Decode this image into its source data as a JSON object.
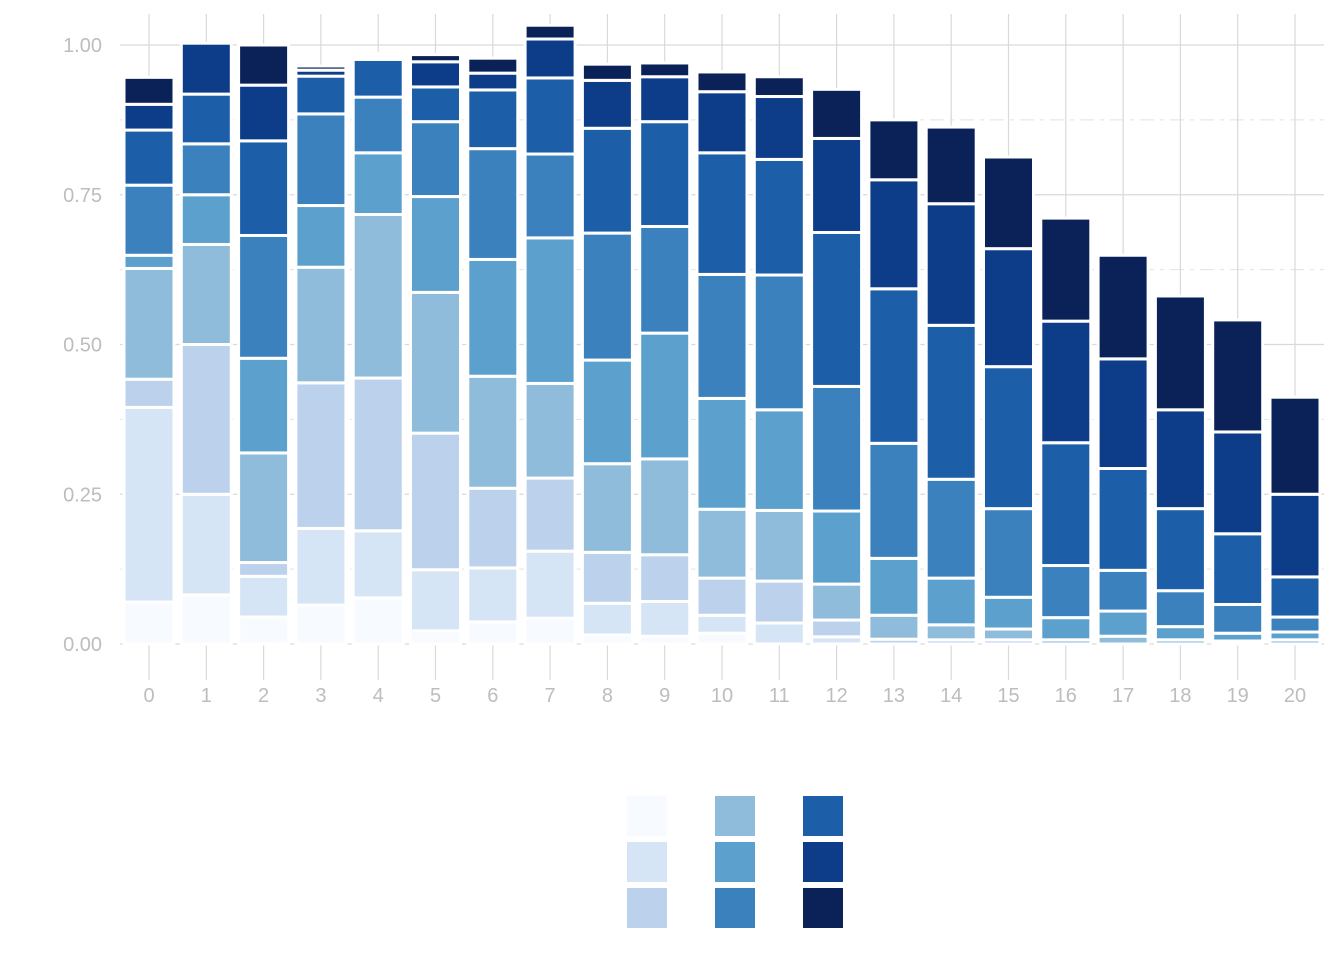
{
  "chart_data": {
    "type": "bar",
    "stacked": true,
    "x": [
      0,
      1,
      2,
      3,
      4,
      5,
      6,
      7,
      8,
      9,
      10,
      11,
      12,
      13,
      14,
      15,
      16,
      17,
      18,
      19,
      20
    ],
    "ylim": [
      0,
      1
    ],
    "yticks": [
      "0.00",
      "0.25",
      "0.50",
      "0.75",
      "1.00"
    ],
    "ytick_values": [
      0,
      0.25,
      0.5,
      0.75,
      1
    ],
    "grid": true,
    "legend_position": "bottom-center",
    "palette": [
      "#f7fbff",
      "#d5e5f5",
      "#bcd1ec",
      "#8fbcdb",
      "#5ca0cd",
      "#3a81be",
      "#1d5ea9",
      "#0d3c89",
      "#0b2258"
    ],
    "series": [
      {
        "values": [
          0.07,
          0.082,
          0.045,
          0.065,
          0.077,
          0.022,
          0.037,
          0.043,
          0.015,
          0.013,
          0.018,
          0.0,
          0.0,
          0.0,
          0.0,
          0.0,
          0.0,
          0.0,
          0.0,
          0.0,
          0.0
        ]
      },
      {
        "values": [
          0.325,
          0.168,
          0.068,
          0.128,
          0.112,
          0.102,
          0.09,
          0.112,
          0.053,
          0.058,
          0.03,
          0.035,
          0.012,
          0.0,
          0.0,
          0.0,
          0.0,
          0.0,
          0.0,
          0.0,
          0.0
        ]
      },
      {
        "values": [
          0.047,
          0.25,
          0.023,
          0.243,
          0.255,
          0.228,
          0.133,
          0.122,
          0.085,
          0.078,
          0.062,
          0.07,
          0.028,
          0.008,
          0.007,
          0.007,
          0.0,
          0.0,
          0.0,
          0.0,
          0.0
        ]
      },
      {
        "values": [
          0.185,
          0.167,
          0.183,
          0.193,
          0.273,
          0.235,
          0.187,
          0.158,
          0.148,
          0.16,
          0.115,
          0.118,
          0.06,
          0.04,
          0.025,
          0.018,
          0.007,
          0.013,
          0.007,
          0.005,
          0.007
        ]
      },
      {
        "values": [
          0.022,
          0.083,
          0.158,
          0.103,
          0.103,
          0.16,
          0.195,
          0.243,
          0.173,
          0.21,
          0.185,
          0.168,
          0.122,
          0.095,
          0.078,
          0.053,
          0.037,
          0.042,
          0.022,
          0.013,
          0.013
        ]
      },
      {
        "values": [
          0.117,
          0.085,
          0.205,
          0.153,
          0.093,
          0.125,
          0.185,
          0.14,
          0.212,
          0.178,
          0.207,
          0.225,
          0.208,
          0.192,
          0.165,
          0.148,
          0.087,
          0.068,
          0.06,
          0.048,
          0.025
        ]
      },
      {
        "values": [
          0.092,
          0.083,
          0.158,
          0.063,
          0.063,
          0.058,
          0.098,
          0.127,
          0.175,
          0.175,
          0.203,
          0.193,
          0.257,
          0.258,
          0.257,
          0.237,
          0.205,
          0.17,
          0.137,
          0.118,
          0.067
        ]
      },
      {
        "values": [
          0.043,
          0.085,
          0.093,
          0.01,
          0.005,
          0.042,
          0.028,
          0.065,
          0.08,
          0.075,
          0.102,
          0.105,
          0.157,
          0.182,
          0.203,
          0.197,
          0.203,
          0.183,
          0.165,
          0.17,
          0.138
        ]
      },
      {
        "values": [
          0.045,
          0.0,
          0.067,
          0.007,
          0.005,
          0.012,
          0.025,
          0.023,
          0.027,
          0.023,
          0.033,
          0.033,
          0.082,
          0.1,
          0.128,
          0.153,
          0.172,
          0.173,
          0.19,
          0.187,
          0.162
        ]
      }
    ]
  }
}
